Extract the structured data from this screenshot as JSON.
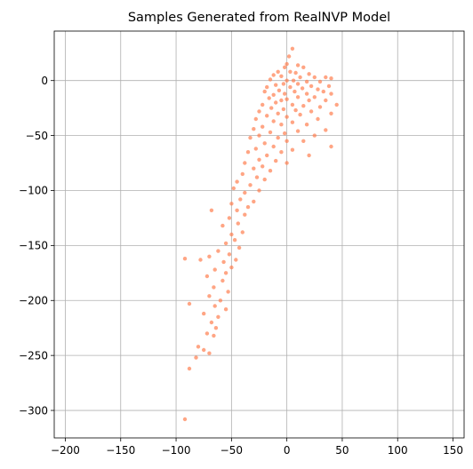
{
  "chart_data": {
    "type": "scatter",
    "title": "Samples Generated from RealNVP Model",
    "xlabel": "",
    "ylabel": "",
    "xlim": [
      -210,
      160
    ],
    "ylim": [
      -325,
      45
    ],
    "xticks": [
      -200,
      -150,
      -100,
      -50,
      0,
      50,
      100,
      150
    ],
    "yticks": [
      0,
      -50,
      -100,
      -150,
      -200,
      -250,
      -300
    ],
    "xtick_labels": [
      "−200",
      "−150",
      "−100",
      "−50",
      "0",
      "50",
      "100",
      "150"
    ],
    "ytick_labels": [
      "0",
      "−50",
      "−100",
      "−150",
      "−200",
      "−250",
      "−300"
    ],
    "grid": true,
    "marker_color": "#ff7f50",
    "marker_alpha": 0.7,
    "series": [
      {
        "points": [
          [
            5,
            29
          ],
          [
            2,
            22
          ],
          [
            0,
            15
          ],
          [
            10,
            14
          ],
          [
            -2,
            12
          ],
          [
            15,
            12
          ],
          [
            -8,
            8
          ],
          [
            3,
            8
          ],
          [
            8,
            7
          ],
          [
            20,
            6
          ],
          [
            -12,
            5
          ],
          [
            -5,
            4
          ],
          [
            12,
            3
          ],
          [
            25,
            3
          ],
          [
            35,
            3
          ],
          [
            40,
            2
          ],
          [
            -15,
            1
          ],
          [
            0,
            0
          ],
          [
            6,
            0
          ],
          [
            18,
            -1
          ],
          [
            30,
            -1
          ],
          [
            -3,
            -3
          ],
          [
            10,
            -3
          ],
          [
            -10,
            -4
          ],
          [
            22,
            -5
          ],
          [
            38,
            -5
          ],
          [
            -18,
            -6
          ],
          [
            3,
            -6
          ],
          [
            14,
            -7
          ],
          [
            28,
            -8
          ],
          [
            -7,
            -9
          ],
          [
            7,
            -10
          ],
          [
            -20,
            -10
          ],
          [
            33,
            -10
          ],
          [
            18,
            -12
          ],
          [
            -2,
            -12
          ],
          [
            -12,
            -13
          ],
          [
            40,
            -12
          ],
          [
            10,
            -15
          ],
          [
            25,
            -15
          ],
          [
            -16,
            -16
          ],
          [
            0,
            -17
          ],
          [
            -5,
            -18
          ],
          [
            20,
            -18
          ],
          [
            35,
            -18
          ],
          [
            45,
            -22
          ],
          [
            -10,
            -20
          ],
          [
            5,
            -22
          ],
          [
            -22,
            -22
          ],
          [
            15,
            -23
          ],
          [
            30,
            -24
          ],
          [
            -14,
            -25
          ],
          [
            -3,
            -26
          ],
          [
            8,
            -27
          ],
          [
            -25,
            -28
          ],
          [
            22,
            -28
          ],
          [
            -8,
            -30
          ],
          [
            40,
            -30
          ],
          [
            12,
            -31
          ],
          [
            -18,
            -32
          ],
          [
            0,
            -33
          ],
          [
            -28,
            -35
          ],
          [
            28,
            -35
          ],
          [
            -12,
            -37
          ],
          [
            5,
            -38
          ],
          [
            -5,
            -40
          ],
          [
            18,
            -40
          ],
          [
            -22,
            -42
          ],
          [
            -30,
            -44
          ],
          [
            35,
            -45
          ],
          [
            10,
            -46
          ],
          [
            -15,
            -47
          ],
          [
            -2,
            -48
          ],
          [
            25,
            -50
          ],
          [
            -25,
            -50
          ],
          [
            -8,
            -52
          ],
          [
            -33,
            -52
          ],
          [
            15,
            -55
          ],
          [
            0,
            -55
          ],
          [
            -20,
            -57
          ],
          [
            40,
            -60
          ],
          [
            -12,
            -60
          ],
          [
            -28,
            -62
          ],
          [
            5,
            -63
          ],
          [
            -35,
            -65
          ],
          [
            -5,
            -65
          ],
          [
            -18,
            -68
          ],
          [
            20,
            -68
          ],
          [
            -25,
            -72
          ],
          [
            -10,
            -73
          ],
          [
            -38,
            -75
          ],
          [
            0,
            -75
          ],
          [
            -22,
            -78
          ],
          [
            -30,
            -80
          ],
          [
            -15,
            -82
          ],
          [
            -40,
            -85
          ],
          [
            -27,
            -88
          ],
          [
            -20,
            -90
          ],
          [
            -45,
            -92
          ],
          [
            -33,
            -95
          ],
          [
            -48,
            -98
          ],
          [
            -25,
            -100
          ],
          [
            -38,
            -102
          ],
          [
            -42,
            -108
          ],
          [
            -30,
            -110
          ],
          [
            -50,
            -112
          ],
          [
            -35,
            -115
          ],
          [
            -45,
            -118
          ],
          [
            -68,
            -118
          ],
          [
            -38,
            -122
          ],
          [
            -52,
            -125
          ],
          [
            -44,
            -130
          ],
          [
            -58,
            -132
          ],
          [
            -40,
            -138
          ],
          [
            -50,
            -140
          ],
          [
            -47,
            -145
          ],
          [
            -55,
            -148
          ],
          [
            -43,
            -152
          ],
          [
            -62,
            -155
          ],
          [
            -52,
            -158
          ],
          [
            -70,
            -160
          ],
          [
            -46,
            -163
          ],
          [
            -57,
            -165
          ],
          [
            -92,
            -162
          ],
          [
            -78,
            -163
          ],
          [
            -50,
            -170
          ],
          [
            -65,
            -172
          ],
          [
            -55,
            -175
          ],
          [
            -72,
            -178
          ],
          [
            -58,
            -182
          ],
          [
            -66,
            -188
          ],
          [
            -53,
            -192
          ],
          [
            -70,
            -196
          ],
          [
            -60,
            -200
          ],
          [
            -88,
            -203
          ],
          [
            -65,
            -205
          ],
          [
            -55,
            -208
          ],
          [
            -75,
            -212
          ],
          [
            -62,
            -215
          ],
          [
            -68,
            -220
          ],
          [
            -64,
            -225
          ],
          [
            -72,
            -230
          ],
          [
            -66,
            -232
          ],
          [
            -80,
            -242
          ],
          [
            -75,
            -245
          ],
          [
            -70,
            -248
          ],
          [
            -82,
            -252
          ],
          [
            -88,
            -262
          ],
          [
            -92,
            -308
          ]
        ]
      }
    ]
  }
}
